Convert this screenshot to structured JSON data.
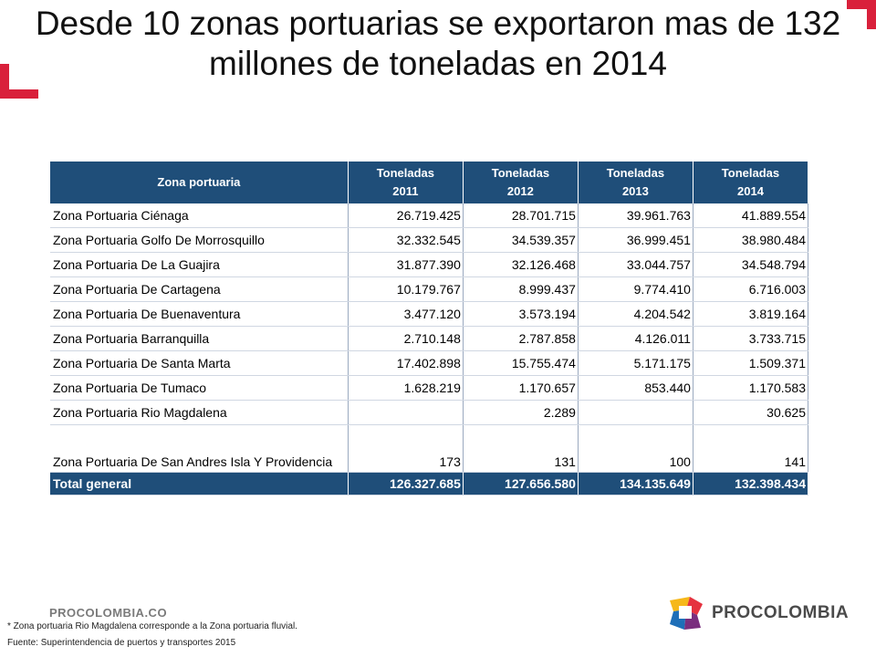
{
  "title": "Desde 10 zonas portuarias se exportaron mas de 132 millones de toneladas en 2014",
  "table": {
    "header_zone": "Zona portuaria",
    "headers": [
      {
        "line1": "Toneladas",
        "line2": "2011"
      },
      {
        "line1": "Toneladas",
        "line2": "2012"
      },
      {
        "line1": "Toneladas",
        "line2": "2013"
      },
      {
        "line1": "Toneladas",
        "line2": "2014"
      }
    ],
    "rows": [
      {
        "name": "Zona Portuaria Ciénaga",
        "v": [
          "26.719.425",
          "28.701.715",
          "39.961.763",
          "41.889.554"
        ]
      },
      {
        "name": "Zona Portuaria Golfo De Morrosquillo",
        "v": [
          "32.332.545",
          "34.539.357",
          "36.999.451",
          "38.980.484"
        ]
      },
      {
        "name": "Zona  Portuaria De La Guajira",
        "v": [
          "31.877.390",
          "32.126.468",
          "33.044.757",
          "34.548.794"
        ]
      },
      {
        "name": "Zona Portuaria De Cartagena",
        "v": [
          "10.179.767",
          "8.999.437",
          "9.774.410",
          "6.716.003"
        ]
      },
      {
        "name": "Zona Portuaria De Buenaventura",
        "v": [
          "3.477.120",
          "3.573.194",
          "4.204.542",
          "3.819.164"
        ]
      },
      {
        "name": "Zona Portuaria  Barranquilla",
        "v": [
          "2.710.148",
          "2.787.858",
          "4.126.011",
          "3.733.715"
        ]
      },
      {
        "name": "Zona Portuaria  De Santa Marta",
        "v": [
          "17.402.898",
          "15.755.474",
          "5.171.175",
          "1.509.371"
        ]
      },
      {
        "name": "Zona Portuaria De Tumaco",
        "v": [
          "1.628.219",
          "1.170.657",
          "853.440",
          "1.170.583"
        ]
      },
      {
        "name": "Zona Portuaria Rio Magdalena",
        "v": [
          "",
          "2.289",
          "",
          "30.625"
        ]
      },
      {
        "name": "Zona Portuaria De San Andres  Isla Y Providencia",
        "v": [
          "173",
          "131",
          "100",
          "141"
        ]
      }
    ],
    "total": {
      "name": "Total general",
      "v": [
        "126.327.685",
        "127.656.580",
        "134.135.649",
        "132.398.434"
      ]
    }
  },
  "footer": {
    "logo_small": "PROCOLOMBIA.CO",
    "note": "* Zona portuaria Rio Magdalena corresponde a la Zona portuaria fluvial.",
    "source": "Fuente: Superintendencia de puertos y transportes 2015",
    "brand": "PROCOLOMBIA"
  },
  "colors": {
    "accent": "#d9203b",
    "header_bg": "#1f4e79"
  }
}
